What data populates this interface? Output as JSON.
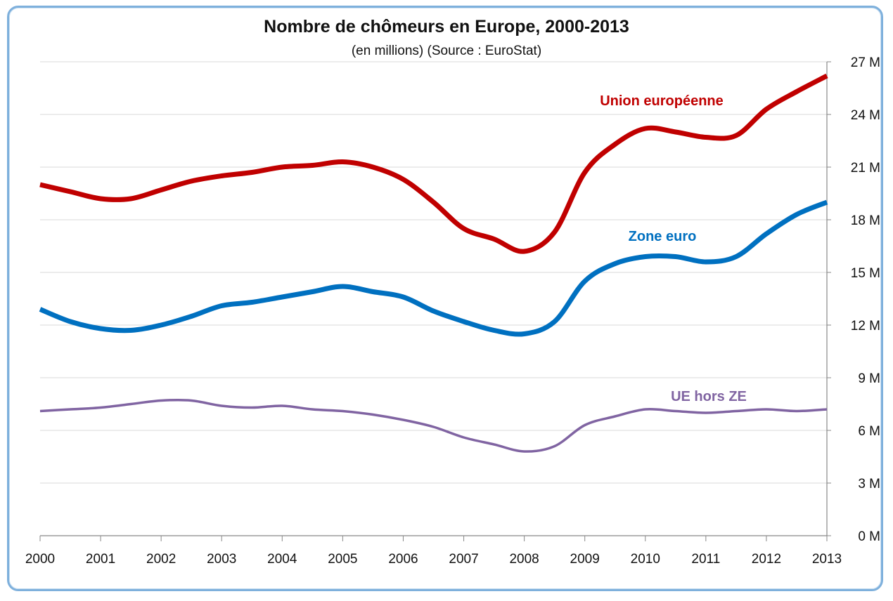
{
  "chart_data": {
    "type": "line",
    "title": "Nombre de chômeurs en Europe, 2000-2013",
    "subtitle": "(en millions) (Source : EuroStat)",
    "x": [
      2000,
      2001,
      2002,
      2003,
      2004,
      2005,
      2006,
      2007,
      2008,
      2009,
      2010,
      2011,
      2012,
      2013
    ],
    "xlim": [
      2000,
      2013
    ],
    "ylim": [
      0,
      27
    ],
    "y_ticks": [
      0,
      3,
      6,
      9,
      12,
      15,
      18,
      21,
      24,
      27
    ],
    "y_tick_labels": [
      "0 M",
      "3 M",
      "6 M",
      "9 M",
      "12 M",
      "15 M",
      "18 M",
      "21 M",
      "24 M",
      "27 M"
    ],
    "x_tick_labels": [
      "2000",
      "2001",
      "2002",
      "2003",
      "2004",
      "2005",
      "2006",
      "2007",
      "2008",
      "2009",
      "2010",
      "2011",
      "2012",
      "2013"
    ],
    "y_axis_position": "right",
    "grid": true,
    "series": [
      {
        "name": "Union européenne",
        "color": "#c00000",
        "line_weight": "thick",
        "x": [
          2000,
          2000.5,
          2001,
          2001.5,
          2002,
          2002.5,
          2003,
          2003.5,
          2004,
          2004.5,
          2005,
          2005.5,
          2006,
          2006.5,
          2007,
          2007.5,
          2008,
          2008.5,
          2009,
          2009.5,
          2010,
          2010.5,
          2011,
          2011.5,
          2012,
          2012.5,
          2013
        ],
        "values": [
          20.0,
          19.6,
          19.2,
          19.2,
          19.7,
          20.2,
          20.5,
          20.7,
          21.0,
          21.1,
          21.3,
          21.0,
          20.3,
          19.0,
          17.5,
          16.9,
          16.2,
          17.3,
          20.7,
          22.3,
          23.2,
          23.0,
          22.7,
          22.8,
          24.3,
          25.3,
          26.2
        ]
      },
      {
        "name": "Zone euro",
        "color": "#0070c0",
        "line_weight": "thick",
        "x": [
          2000,
          2000.5,
          2001,
          2001.5,
          2002,
          2002.5,
          2003,
          2003.5,
          2004,
          2004.5,
          2005,
          2005.5,
          2006,
          2006.5,
          2007,
          2007.5,
          2008,
          2008.5,
          2009,
          2009.5,
          2010,
          2010.5,
          2011,
          2011.5,
          2012,
          2012.5,
          2013
        ],
        "values": [
          12.9,
          12.2,
          11.8,
          11.7,
          12.0,
          12.5,
          13.1,
          13.3,
          13.6,
          13.9,
          14.2,
          13.9,
          13.6,
          12.8,
          12.2,
          11.7,
          11.5,
          12.2,
          14.5,
          15.5,
          15.9,
          15.9,
          15.6,
          15.9,
          17.2,
          18.3,
          19.0
        ]
      },
      {
        "name": "UE hors ZE",
        "color": "#8064a2",
        "line_weight": "thin",
        "x": [
          2000,
          2000.5,
          2001,
          2001.5,
          2002,
          2002.5,
          2003,
          2003.5,
          2004,
          2004.5,
          2005,
          2005.5,
          2006,
          2006.5,
          2007,
          2007.5,
          2008,
          2008.5,
          2009,
          2009.5,
          2010,
          2010.5,
          2011,
          2011.5,
          2012,
          2012.5,
          2013
        ],
        "values": [
          7.1,
          7.2,
          7.3,
          7.5,
          7.7,
          7.7,
          7.4,
          7.3,
          7.4,
          7.2,
          7.1,
          6.9,
          6.6,
          6.2,
          5.6,
          5.2,
          4.8,
          5.1,
          6.3,
          6.8,
          7.2,
          7.1,
          7.0,
          7.1,
          7.2,
          7.1,
          7.2
        ]
      }
    ]
  }
}
